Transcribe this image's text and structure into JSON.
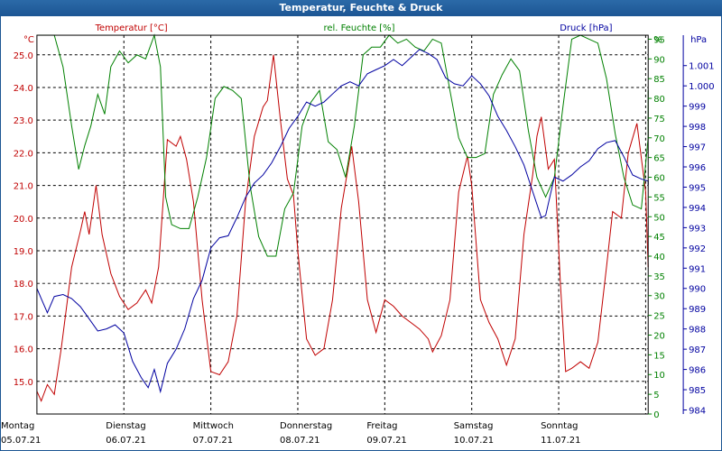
{
  "window": {
    "title": "Temperatur, Feuchte & Druck"
  },
  "chart_data": {
    "type": "line",
    "title": "Temperatur, Feuchte & Druck",
    "x_days": [
      {
        "day": "Montag",
        "date": "05.07.21"
      },
      {
        "day": "Dienstag",
        "date": "06.07.21"
      },
      {
        "day": "Mittwoch",
        "date": "07.07.21"
      },
      {
        "day": "Donnerstag",
        "date": "08.07.21"
      },
      {
        "day": "Freitag",
        "date": "09.07.21"
      },
      {
        "day": "Samstag",
        "date": "10.07.21"
      },
      {
        "day": "Sonntag",
        "date": "11.07.21"
      }
    ],
    "x_range": [
      0,
      7.0
    ],
    "grid": true,
    "axes": {
      "temperature": {
        "label": "Temperatur [°C]",
        "unit": "°C",
        "color": "#c00000",
        "side": "left",
        "range": [
          14.0,
          25.6
        ],
        "ticks": [
          "15.0",
          "16.0",
          "17.0",
          "18.0",
          "19.0",
          "20.0",
          "21.0",
          "22.0",
          "23.0",
          "24.0",
          "25.0"
        ],
        "tick_values": [
          15,
          16,
          17,
          18,
          19,
          20,
          21,
          22,
          23,
          24,
          25
        ]
      },
      "humidity": {
        "label": "rel. Feuchte [%]",
        "unit": "%",
        "color": "#008000",
        "side": "right-inner",
        "range": [
          0,
          96
        ],
        "ticks": [
          "0",
          "5",
          "10",
          "15",
          "20",
          "25",
          "30",
          "35",
          "40",
          "45",
          "50",
          "55",
          "60",
          "65",
          "70",
          "75",
          "80",
          "85",
          "90",
          "95"
        ],
        "tick_values": [
          0,
          5,
          10,
          15,
          20,
          25,
          30,
          35,
          40,
          45,
          50,
          55,
          60,
          65,
          70,
          75,
          80,
          85,
          90,
          95
        ]
      },
      "pressure": {
        "label": "Druck [hPa]",
        "unit": "hPa",
        "color": "#0000a0",
        "side": "right-outer",
        "range": [
          983.8,
          1002.5
        ],
        "ticks": [
          "984",
          "985",
          "986",
          "987",
          "988",
          "989",
          "990",
          "991",
          "992",
          "993",
          "994",
          "995",
          "996",
          "997",
          "998",
          "999",
          "1.000",
          "1.001"
        ],
        "tick_values": [
          984,
          985,
          986,
          987,
          988,
          989,
          990,
          991,
          992,
          993,
          994,
          995,
          996,
          997,
          998,
          999,
          1000,
          1001
        ]
      }
    },
    "series": [
      {
        "name": "Temperatur [°C]",
        "axis": "temperature",
        "color": "#c00000",
        "points": [
          [
            0,
            14.7
          ],
          [
            0.05,
            14.4
          ],
          [
            0.12,
            14.9
          ],
          [
            0.2,
            14.6
          ],
          [
            0.28,
            16.0
          ],
          [
            0.4,
            18.5
          ],
          [
            0.5,
            19.6
          ],
          [
            0.55,
            20.2
          ],
          [
            0.6,
            19.5
          ],
          [
            0.68,
            21.0
          ],
          [
            0.75,
            19.5
          ],
          [
            0.85,
            18.3
          ],
          [
            0.95,
            17.6
          ],
          [
            1.05,
            17.2
          ],
          [
            1.15,
            17.4
          ],
          [
            1.25,
            17.8
          ],
          [
            1.32,
            17.4
          ],
          [
            1.4,
            18.5
          ],
          [
            1.5,
            22.4
          ],
          [
            1.6,
            22.2
          ],
          [
            1.65,
            22.5
          ],
          [
            1.72,
            21.8
          ],
          [
            1.8,
            20.5
          ],
          [
            1.9,
            17.5
          ],
          [
            2.0,
            15.3
          ],
          [
            2.1,
            15.2
          ],
          [
            2.2,
            15.6
          ],
          [
            2.3,
            17.0
          ],
          [
            2.4,
            20.5
          ],
          [
            2.5,
            22.5
          ],
          [
            2.6,
            23.4
          ],
          [
            2.65,
            23.6
          ],
          [
            2.72,
            25.0
          ],
          [
            2.8,
            23.0
          ],
          [
            2.88,
            21.2
          ],
          [
            2.95,
            20.7
          ],
          [
            3.0,
            19.0
          ],
          [
            3.1,
            16.3
          ],
          [
            3.2,
            15.8
          ],
          [
            3.3,
            16.0
          ],
          [
            3.4,
            17.5
          ],
          [
            3.5,
            20.3
          ],
          [
            3.62,
            22.2
          ],
          [
            3.7,
            20.5
          ],
          [
            3.8,
            17.5
          ],
          [
            3.9,
            16.5
          ],
          [
            4.0,
            17.5
          ],
          [
            4.1,
            17.3
          ],
          [
            4.2,
            17.0
          ],
          [
            4.3,
            16.8
          ],
          [
            4.4,
            16.6
          ],
          [
            4.5,
            16.3
          ],
          [
            4.55,
            15.9
          ],
          [
            4.65,
            16.4
          ],
          [
            4.75,
            17.5
          ],
          [
            4.85,
            20.8
          ],
          [
            4.95,
            21.9
          ],
          [
            5.0,
            21.0
          ],
          [
            5.1,
            17.5
          ],
          [
            5.2,
            16.8
          ],
          [
            5.3,
            16.3
          ],
          [
            5.4,
            15.5
          ],
          [
            5.5,
            16.3
          ],
          [
            5.6,
            19.5
          ],
          [
            5.7,
            21.3
          ],
          [
            5.75,
            22.5
          ],
          [
            5.8,
            23.1
          ],
          [
            5.88,
            21.5
          ],
          [
            5.95,
            21.8
          ],
          [
            6.02,
            18.0
          ],
          [
            6.08,
            15.3
          ],
          [
            6.15,
            15.4
          ],
          [
            6.25,
            15.6
          ],
          [
            6.35,
            15.4
          ],
          [
            6.45,
            16.2
          ],
          [
            6.55,
            18.5
          ],
          [
            6.62,
            20.2
          ],
          [
            6.72,
            20.0
          ],
          [
            6.8,
            22.0
          ],
          [
            6.9,
            22.9
          ],
          [
            7.0,
            20.8
          ],
          [
            7.08,
            18.5
          ]
        ]
      },
      {
        "name": "rel. Feuchte [%]",
        "axis": "humidity",
        "color": "#008000",
        "points": [
          [
            0,
            98
          ],
          [
            0.1,
            97.5
          ],
          [
            0.2,
            97
          ],
          [
            0.3,
            88
          ],
          [
            0.4,
            73
          ],
          [
            0.48,
            62
          ],
          [
            0.55,
            68
          ],
          [
            0.62,
            73
          ],
          [
            0.7,
            81
          ],
          [
            0.78,
            76
          ],
          [
            0.85,
            88
          ],
          [
            0.95,
            92
          ],
          [
            1.05,
            89
          ],
          [
            1.15,
            91
          ],
          [
            1.25,
            90
          ],
          [
            1.35,
            96
          ],
          [
            1.42,
            88
          ],
          [
            1.48,
            55
          ],
          [
            1.55,
            48
          ],
          [
            1.65,
            47
          ],
          [
            1.75,
            47
          ],
          [
            1.85,
            55
          ],
          [
            1.95,
            65
          ],
          [
            2.05,
            80
          ],
          [
            2.15,
            83
          ],
          [
            2.25,
            82
          ],
          [
            2.35,
            80
          ],
          [
            2.45,
            58
          ],
          [
            2.55,
            45
          ],
          [
            2.65,
            40
          ],
          [
            2.75,
            40
          ],
          [
            2.85,
            52
          ],
          [
            2.95,
            56
          ],
          [
            3.05,
            73
          ],
          [
            3.15,
            79
          ],
          [
            3.25,
            82
          ],
          [
            3.35,
            69
          ],
          [
            3.45,
            67
          ],
          [
            3.55,
            60
          ],
          [
            3.65,
            73
          ],
          [
            3.75,
            91
          ],
          [
            3.85,
            93
          ],
          [
            3.95,
            93
          ],
          [
            4.05,
            96
          ],
          [
            4.15,
            94
          ],
          [
            4.25,
            95
          ],
          [
            4.35,
            93
          ],
          [
            4.45,
            92
          ],
          [
            4.55,
            95
          ],
          [
            4.65,
            94
          ],
          [
            4.75,
            82
          ],
          [
            4.85,
            70
          ],
          [
            4.95,
            65
          ],
          [
            5.05,
            65
          ],
          [
            5.15,
            66
          ],
          [
            5.25,
            81
          ],
          [
            5.35,
            86
          ],
          [
            5.45,
            90
          ],
          [
            5.55,
            87
          ],
          [
            5.65,
            72
          ],
          [
            5.75,
            60
          ],
          [
            5.85,
            55
          ],
          [
            5.95,
            60
          ],
          [
            6.05,
            78
          ],
          [
            6.15,
            95
          ],
          [
            6.25,
            96
          ],
          [
            6.35,
            95
          ],
          [
            6.45,
            94
          ],
          [
            6.55,
            85
          ],
          [
            6.65,
            71
          ],
          [
            6.75,
            60
          ],
          [
            6.85,
            53
          ],
          [
            6.95,
            52
          ],
          [
            7.05,
            70
          ],
          [
            7.12,
            82
          ]
        ]
      },
      {
        "name": "Druck [hPa]",
        "axis": "pressure",
        "color": "#0000a0",
        "points": [
          [
            0,
            990.0
          ],
          [
            0.05,
            989.5
          ],
          [
            0.12,
            988.8
          ],
          [
            0.2,
            989.6
          ],
          [
            0.3,
            989.7
          ],
          [
            0.4,
            989.5
          ],
          [
            0.5,
            989.1
          ],
          [
            0.6,
            988.5
          ],
          [
            0.7,
            987.9
          ],
          [
            0.8,
            988.0
          ],
          [
            0.9,
            988.2
          ],
          [
            1.0,
            987.8
          ],
          [
            1.1,
            986.4
          ],
          [
            1.2,
            985.6
          ],
          [
            1.28,
            985.1
          ],
          [
            1.35,
            986.0
          ],
          [
            1.42,
            984.9
          ],
          [
            1.5,
            986.3
          ],
          [
            1.6,
            987.0
          ],
          [
            1.7,
            988.0
          ],
          [
            1.8,
            989.5
          ],
          [
            1.9,
            990.4
          ],
          [
            2.0,
            992.0
          ],
          [
            2.1,
            992.5
          ],
          [
            2.2,
            992.6
          ],
          [
            2.3,
            993.5
          ],
          [
            2.4,
            994.5
          ],
          [
            2.5,
            995.2
          ],
          [
            2.6,
            995.6
          ],
          [
            2.7,
            996.2
          ],
          [
            2.8,
            997.0
          ],
          [
            2.9,
            997.9
          ],
          [
            3.0,
            998.5
          ],
          [
            3.1,
            999.2
          ],
          [
            3.2,
            999.0
          ],
          [
            3.3,
            999.2
          ],
          [
            3.4,
            999.6
          ],
          [
            3.5,
            1000.0
          ],
          [
            3.6,
            1000.2
          ],
          [
            3.7,
            1000.0
          ],
          [
            3.8,
            1000.6
          ],
          [
            3.9,
            1000.8
          ],
          [
            4.0,
            1001.0
          ],
          [
            4.1,
            1001.3
          ],
          [
            4.2,
            1001.0
          ],
          [
            4.3,
            1001.4
          ],
          [
            4.4,
            1001.8
          ],
          [
            4.5,
            1001.6
          ],
          [
            4.6,
            1001.3
          ],
          [
            4.7,
            1000.4
          ],
          [
            4.8,
            1000.1
          ],
          [
            4.9,
            1000.0
          ],
          [
            5.0,
            1000.5
          ],
          [
            5.1,
            1000.1
          ],
          [
            5.2,
            999.5
          ],
          [
            5.3,
            998.5
          ],
          [
            5.4,
            997.8
          ],
          [
            5.5,
            997.0
          ],
          [
            5.6,
            996.1
          ],
          [
            5.7,
            994.8
          ],
          [
            5.8,
            993.5
          ],
          [
            5.85,
            993.6
          ],
          [
            5.95,
            995.5
          ],
          [
            6.05,
            995.3
          ],
          [
            6.15,
            995.6
          ],
          [
            6.25,
            996.0
          ],
          [
            6.35,
            996.3
          ],
          [
            6.45,
            996.9
          ],
          [
            6.55,
            997.2
          ],
          [
            6.65,
            997.3
          ],
          [
            6.75,
            996.5
          ],
          [
            6.85,
            995.6
          ],
          [
            6.95,
            995.4
          ],
          [
            7.05,
            995.3
          ],
          [
            7.12,
            995.1
          ]
        ]
      }
    ]
  }
}
